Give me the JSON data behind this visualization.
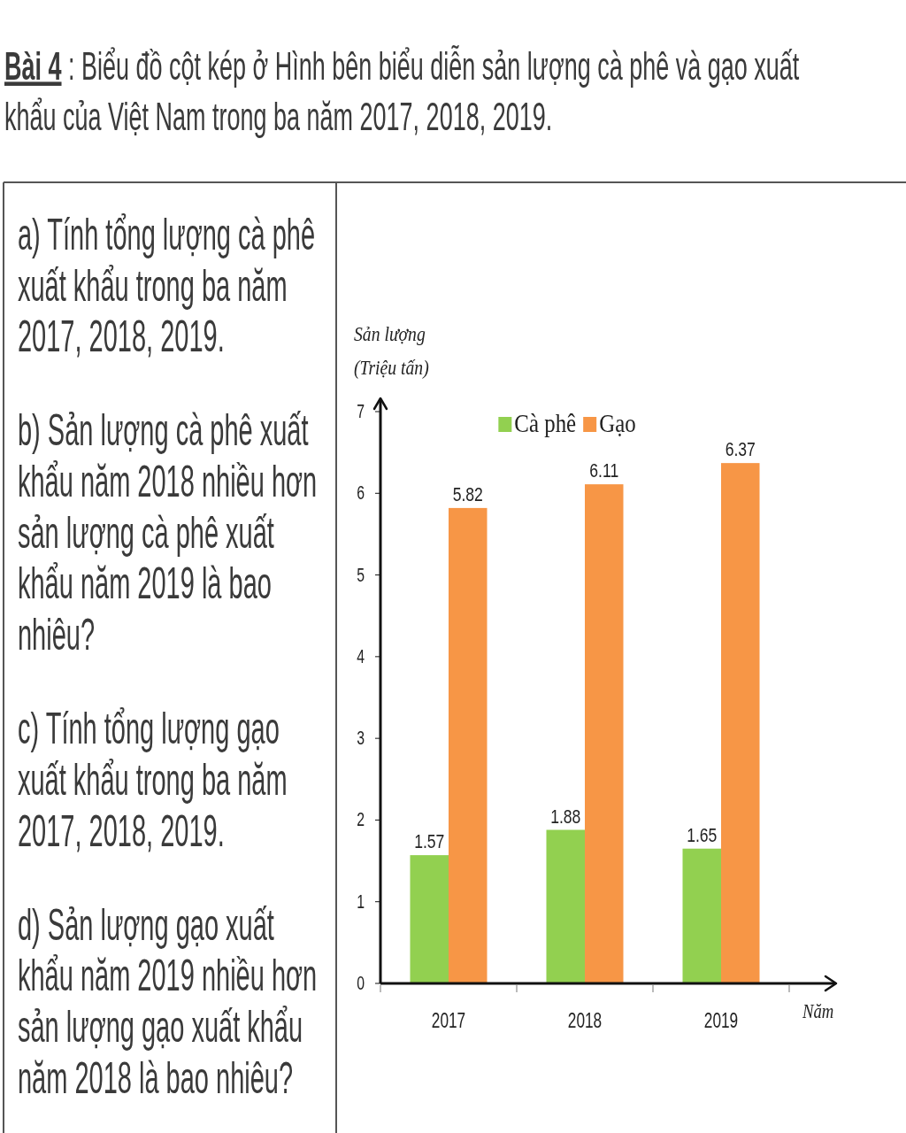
{
  "chart_data": {
    "type": "bar",
    "title": "Bài 4 : Biểu đồ cột kép ở Hình bên biểu diễn sản lượng cà phê và gạo xuất khẩu của Việt Nam trong ba năm 2017, 2018, 2019.",
    "annotations": [
      "a) Tính tổng lượng cà phê xuất khẩu trong ba năm 2017, 2018, 2019.",
      "b) Sản lượng cà phê xuất khẩu năm 2018 nhiều hơn sản lượng cà phê xuất khẩu năm 2019 là bao nhiêu?",
      "c) Tính tổng lượng gạo xuất khẩu trong ba năm 2017, 2018, 2019.",
      "d) Sản lượng gạo xuất khẩu năm 2019 nhiều hơn sản lượng gạo xuất khẩu năm 2018 là bao nhiêu?"
    ],
    "ylabel": "Sản lượng (Triệu tấn)",
    "xlabel": "Năm",
    "categories": [
      "2017",
      "2018",
      "2019"
    ],
    "series": [
      {
        "name": "Cà phê",
        "color": "#92d050",
        "values": [
          1.57,
          1.88,
          1.65
        ]
      },
      {
        "name": "Gạo",
        "color": "#f79646",
        "values": [
          5.82,
          6.11,
          6.37
        ]
      }
    ],
    "ylim": [
      0,
      7
    ],
    "yticks": [
      0,
      1,
      2,
      3,
      4,
      5,
      6,
      7
    ],
    "legend": "top",
    "data_labels": true
  }
}
